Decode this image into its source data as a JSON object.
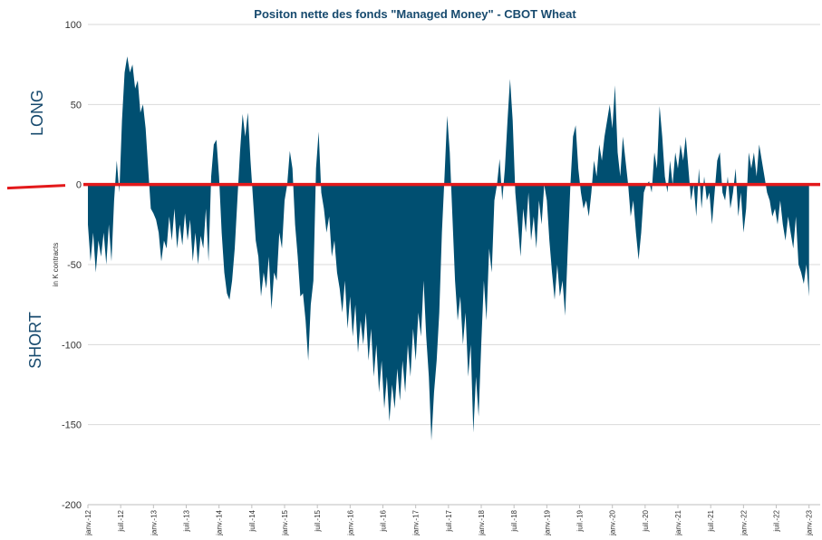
{
  "chart_data": {
    "type": "area",
    "title": "Positon nette des fonds \"Managed Money\" - CBOT Wheat",
    "ylabel": "in K contracts",
    "ylim": [
      -200,
      100
    ],
    "yticks": [
      100,
      50,
      0,
      -50,
      -100,
      -150,
      -200
    ],
    "grid": true,
    "x_tick_labels": [
      "janv.-12",
      "juil.-12",
      "janv.-13",
      "juil.-13",
      "janv.-14",
      "juil.-14",
      "janv.-15",
      "juil.-15",
      "janv.-16",
      "juil.-16",
      "janv.-17",
      "juil.-17",
      "janv.-18",
      "juil.-18",
      "janv.-19",
      "juil.-19",
      "janv.-20",
      "juil.-20",
      "janv.-21",
      "juil.-21",
      "janv.-22",
      "juil.-22",
      "janv.-23"
    ],
    "annotations": {
      "long": "LONG",
      "short": "SHORT"
    },
    "zero_line_color": "#e3191b",
    "area_color": "#004f71",
    "series": [
      {
        "points": [
          [
            2012.0,
            -25
          ],
          [
            2012.04,
            -48
          ],
          [
            2012.08,
            -30
          ],
          [
            2012.12,
            -55
          ],
          [
            2012.16,
            -35
          ],
          [
            2012.2,
            -45
          ],
          [
            2012.24,
            -30
          ],
          [
            2012.28,
            -50
          ],
          [
            2012.32,
            -25
          ],
          [
            2012.36,
            -48
          ],
          [
            2012.4,
            -10
          ],
          [
            2012.44,
            15
          ],
          [
            2012.48,
            -5
          ],
          [
            2012.52,
            40
          ],
          [
            2012.56,
            70
          ],
          [
            2012.6,
            80
          ],
          [
            2012.64,
            70
          ],
          [
            2012.68,
            75
          ],
          [
            2012.72,
            60
          ],
          [
            2012.76,
            65
          ],
          [
            2012.8,
            45
          ],
          [
            2012.84,
            50
          ],
          [
            2012.88,
            35
          ],
          [
            2012.92,
            10
          ],
          [
            2012.96,
            -15
          ],
          [
            2013.0,
            -18
          ],
          [
            2013.04,
            -22
          ],
          [
            2013.08,
            -30
          ],
          [
            2013.12,
            -48
          ],
          [
            2013.16,
            -35
          ],
          [
            2013.2,
            -40
          ],
          [
            2013.24,
            -20
          ],
          [
            2013.28,
            -35
          ],
          [
            2013.32,
            -15
          ],
          [
            2013.36,
            -40
          ],
          [
            2013.4,
            -25
          ],
          [
            2013.44,
            -38
          ],
          [
            2013.48,
            -18
          ],
          [
            2013.52,
            -35
          ],
          [
            2013.56,
            -22
          ],
          [
            2013.6,
            -48
          ],
          [
            2013.64,
            -30
          ],
          [
            2013.68,
            -50
          ],
          [
            2013.72,
            -32
          ],
          [
            2013.76,
            -40
          ],
          [
            2013.8,
            -15
          ],
          [
            2013.84,
            -48
          ],
          [
            2013.88,
            5
          ],
          [
            2013.92,
            25
          ],
          [
            2013.96,
            28
          ],
          [
            2014.0,
            5
          ],
          [
            2014.04,
            -30
          ],
          [
            2014.08,
            -55
          ],
          [
            2014.12,
            -68
          ],
          [
            2014.16,
            -72
          ],
          [
            2014.2,
            -60
          ],
          [
            2014.24,
            -40
          ],
          [
            2014.28,
            -10
          ],
          [
            2014.32,
            20
          ],
          [
            2014.36,
            44
          ],
          [
            2014.4,
            30
          ],
          [
            2014.44,
            45
          ],
          [
            2014.48,
            15
          ],
          [
            2014.52,
            -10
          ],
          [
            2014.56,
            -35
          ],
          [
            2014.6,
            -45
          ],
          [
            2014.64,
            -70
          ],
          [
            2014.68,
            -55
          ],
          [
            2014.72,
            -65
          ],
          [
            2014.76,
            -45
          ],
          [
            2014.8,
            -78
          ],
          [
            2014.84,
            -55
          ],
          [
            2014.88,
            -60
          ],
          [
            2014.92,
            -30
          ],
          [
            2014.96,
            -40
          ],
          [
            2015.0,
            -10
          ],
          [
            2015.04,
            0
          ],
          [
            2015.08,
            21
          ],
          [
            2015.12,
            10
          ],
          [
            2015.16,
            -25
          ],
          [
            2015.2,
            -45
          ],
          [
            2015.24,
            -70
          ],
          [
            2015.28,
            -68
          ],
          [
            2015.32,
            -85
          ],
          [
            2015.36,
            -110
          ],
          [
            2015.4,
            -75
          ],
          [
            2015.44,
            -60
          ],
          [
            2015.48,
            10
          ],
          [
            2015.52,
            33
          ],
          [
            2015.56,
            -5
          ],
          [
            2015.6,
            -15
          ],
          [
            2015.64,
            -30
          ],
          [
            2015.68,
            -20
          ],
          [
            2015.72,
            -45
          ],
          [
            2015.76,
            -35
          ],
          [
            2015.8,
            -55
          ],
          [
            2015.84,
            -65
          ],
          [
            2015.88,
            -80
          ],
          [
            2015.92,
            -60
          ],
          [
            2015.96,
            -90
          ],
          [
            2016.0,
            -70
          ],
          [
            2016.04,
            -95
          ],
          [
            2016.08,
            -75
          ],
          [
            2016.12,
            -105
          ],
          [
            2016.16,
            -85
          ],
          [
            2016.2,
            -100
          ],
          [
            2016.24,
            -80
          ],
          [
            2016.28,
            -110
          ],
          [
            2016.32,
            -90
          ],
          [
            2016.36,
            -120
          ],
          [
            2016.4,
            -100
          ],
          [
            2016.44,
            -130
          ],
          [
            2016.48,
            -110
          ],
          [
            2016.52,
            -140
          ],
          [
            2016.56,
            -120
          ],
          [
            2016.6,
            -148
          ],
          [
            2016.64,
            -125
          ],
          [
            2016.68,
            -140
          ],
          [
            2016.72,
            -115
          ],
          [
            2016.76,
            -135
          ],
          [
            2016.8,
            -110
          ],
          [
            2016.84,
            -130
          ],
          [
            2016.88,
            -100
          ],
          [
            2016.92,
            -120
          ],
          [
            2016.96,
            -90
          ],
          [
            2017.0,
            -110
          ],
          [
            2017.04,
            -80
          ],
          [
            2017.08,
            -95
          ],
          [
            2017.12,
            -60
          ],
          [
            2017.16,
            -95
          ],
          [
            2017.2,
            -120
          ],
          [
            2017.24,
            -160
          ],
          [
            2017.28,
            -130
          ],
          [
            2017.32,
            -110
          ],
          [
            2017.36,
            -80
          ],
          [
            2017.4,
            -30
          ],
          [
            2017.44,
            5
          ],
          [
            2017.48,
            43
          ],
          [
            2017.52,
            20
          ],
          [
            2017.56,
            -20
          ],
          [
            2017.6,
            -60
          ],
          [
            2017.64,
            -85
          ],
          [
            2017.68,
            -70
          ],
          [
            2017.72,
            -100
          ],
          [
            2017.76,
            -80
          ],
          [
            2017.8,
            -120
          ],
          [
            2017.84,
            -100
          ],
          [
            2017.88,
            -155
          ],
          [
            2017.92,
            -120
          ],
          [
            2017.96,
            -145
          ],
          [
            2018.0,
            -100
          ],
          [
            2018.04,
            -60
          ],
          [
            2018.08,
            -85
          ],
          [
            2018.12,
            -40
          ],
          [
            2018.16,
            -55
          ],
          [
            2018.2,
            -10
          ],
          [
            2018.24,
            0
          ],
          [
            2018.28,
            16
          ],
          [
            2018.32,
            -10
          ],
          [
            2018.36,
            10
          ],
          [
            2018.4,
            40
          ],
          [
            2018.44,
            66
          ],
          [
            2018.48,
            40
          ],
          [
            2018.52,
            -5
          ],
          [
            2018.56,
            -25
          ],
          [
            2018.6,
            -45
          ],
          [
            2018.64,
            -15
          ],
          [
            2018.68,
            -30
          ],
          [
            2018.72,
            -5
          ],
          [
            2018.76,
            -35
          ],
          [
            2018.8,
            -20
          ],
          [
            2018.84,
            -40
          ],
          [
            2018.88,
            -10
          ],
          [
            2018.92,
            -25
          ],
          [
            2018.96,
            0
          ],
          [
            2019.0,
            -10
          ],
          [
            2019.04,
            -35
          ],
          [
            2019.08,
            -55
          ],
          [
            2019.12,
            -72
          ],
          [
            2019.16,
            -50
          ],
          [
            2019.2,
            -70
          ],
          [
            2019.24,
            -60
          ],
          [
            2019.28,
            -82
          ],
          [
            2019.32,
            -40
          ],
          [
            2019.36,
            0
          ],
          [
            2019.4,
            30
          ],
          [
            2019.44,
            37
          ],
          [
            2019.48,
            10
          ],
          [
            2019.52,
            -5
          ],
          [
            2019.56,
            -15
          ],
          [
            2019.6,
            -10
          ],
          [
            2019.64,
            -20
          ],
          [
            2019.68,
            -5
          ],
          [
            2019.72,
            15
          ],
          [
            2019.76,
            5
          ],
          [
            2019.8,
            25
          ],
          [
            2019.84,
            15
          ],
          [
            2019.88,
            30
          ],
          [
            2019.92,
            40
          ],
          [
            2019.96,
            50
          ],
          [
            2020.0,
            35
          ],
          [
            2020.04,
            62
          ],
          [
            2020.08,
            20
          ],
          [
            2020.12,
            5
          ],
          [
            2020.16,
            30
          ],
          [
            2020.2,
            15
          ],
          [
            2020.24,
            0
          ],
          [
            2020.28,
            -20
          ],
          [
            2020.32,
            -10
          ],
          [
            2020.36,
            -30
          ],
          [
            2020.4,
            -47
          ],
          [
            2020.44,
            -30
          ],
          [
            2020.48,
            -5
          ],
          [
            2020.52,
            0
          ],
          [
            2020.56,
            2
          ],
          [
            2020.6,
            -5
          ],
          [
            2020.64,
            20
          ],
          [
            2020.68,
            10
          ],
          [
            2020.72,
            49
          ],
          [
            2020.76,
            30
          ],
          [
            2020.8,
            5
          ],
          [
            2020.84,
            -5
          ],
          [
            2020.88,
            15
          ],
          [
            2020.92,
            0
          ],
          [
            2020.96,
            20
          ],
          [
            2021.0,
            10
          ],
          [
            2021.04,
            25
          ],
          [
            2021.08,
            15
          ],
          [
            2021.12,
            30
          ],
          [
            2021.16,
            10
          ],
          [
            2021.2,
            -10
          ],
          [
            2021.24,
            0
          ],
          [
            2021.28,
            -20
          ],
          [
            2021.32,
            10
          ],
          [
            2021.36,
            -15
          ],
          [
            2021.4,
            5
          ],
          [
            2021.44,
            -10
          ],
          [
            2021.48,
            -5
          ],
          [
            2021.52,
            -25
          ],
          [
            2021.56,
            -5
          ],
          [
            2021.6,
            15
          ],
          [
            2021.64,
            20
          ],
          [
            2021.68,
            -5
          ],
          [
            2021.72,
            -10
          ],
          [
            2021.76,
            5
          ],
          [
            2021.8,
            -15
          ],
          [
            2021.84,
            -5
          ],
          [
            2021.88,
            10
          ],
          [
            2021.92,
            -20
          ],
          [
            2021.96,
            -5
          ],
          [
            2022.0,
            -30
          ],
          [
            2022.04,
            -15
          ],
          [
            2022.08,
            20
          ],
          [
            2022.12,
            10
          ],
          [
            2022.16,
            20
          ],
          [
            2022.2,
            5
          ],
          [
            2022.24,
            25
          ],
          [
            2022.28,
            15
          ],
          [
            2022.32,
            5
          ],
          [
            2022.36,
            -5
          ],
          [
            2022.4,
            -10
          ],
          [
            2022.44,
            -20
          ],
          [
            2022.48,
            -15
          ],
          [
            2022.52,
            -25
          ],
          [
            2022.56,
            -10
          ],
          [
            2022.6,
            -25
          ],
          [
            2022.64,
            -35
          ],
          [
            2022.68,
            -20
          ],
          [
            2022.72,
            -30
          ],
          [
            2022.76,
            -40
          ],
          [
            2022.8,
            -20
          ],
          [
            2022.84,
            -50
          ],
          [
            2022.88,
            -55
          ],
          [
            2022.92,
            -62
          ],
          [
            2022.96,
            -50
          ],
          [
            2023.0,
            -70
          ]
        ]
      }
    ]
  }
}
